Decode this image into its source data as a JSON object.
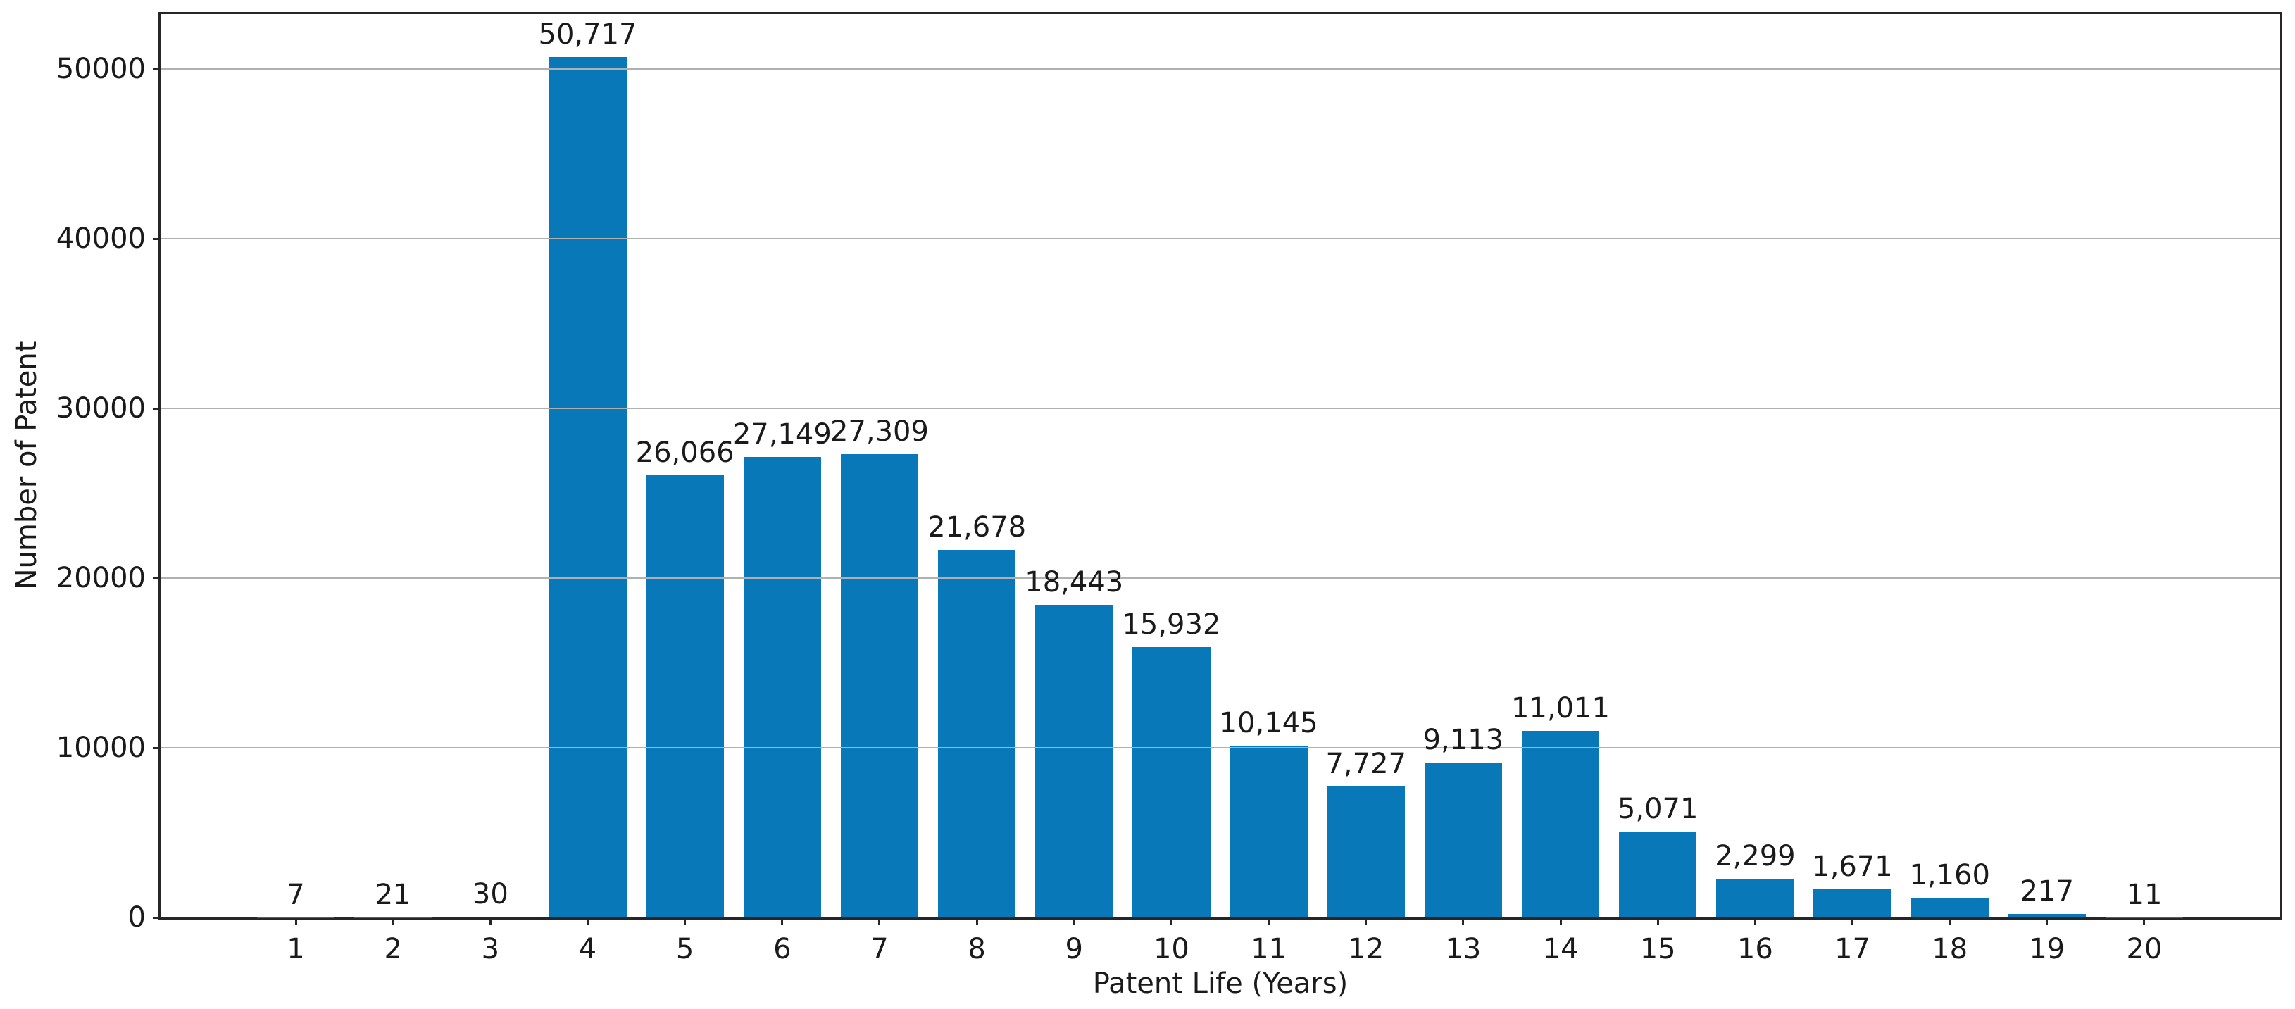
{
  "chart_data": {
    "type": "bar",
    "title": "",
    "xlabel": "Patent Life (Years)",
    "ylabel": "Number of Patent",
    "categories": [
      "1",
      "2",
      "3",
      "4",
      "5",
      "6",
      "7",
      "8",
      "9",
      "10",
      "11",
      "12",
      "13",
      "14",
      "15",
      "16",
      "17",
      "18",
      "19",
      "20"
    ],
    "values": [
      7,
      21,
      30,
      50717,
      26066,
      27149,
      27309,
      21678,
      18443,
      15932,
      10145,
      7727,
      9113,
      11011,
      5071,
      2299,
      1671,
      1160,
      217,
      11
    ],
    "bar_labels": [
      "7",
      "21",
      "30",
      "50,717",
      "26,066",
      "27,149",
      "27,309",
      "21,678",
      "18,443",
      "15,932",
      "10,145",
      "7,727",
      "9,113",
      "11,011",
      "5,071",
      "2,299",
      "1,671",
      "1,160",
      "217",
      "11"
    ],
    "yticks": [
      0,
      10000,
      20000,
      30000,
      40000,
      50000
    ],
    "yticklabels": [
      "0",
      "10000",
      "20000",
      "30000",
      "40000",
      "50000"
    ],
    "ylim": [
      0,
      53253
    ],
    "xlim": [
      -0.39,
      21.39
    ],
    "bar_width_data_units": 0.8,
    "grid": "horizontal-gridlines-on-top-of-bars",
    "legend": "none",
    "colors": {
      "bar": "#0878b8",
      "grid": "#b0b0b0",
      "spine": "#262626",
      "text": "#1a1a1a"
    }
  }
}
